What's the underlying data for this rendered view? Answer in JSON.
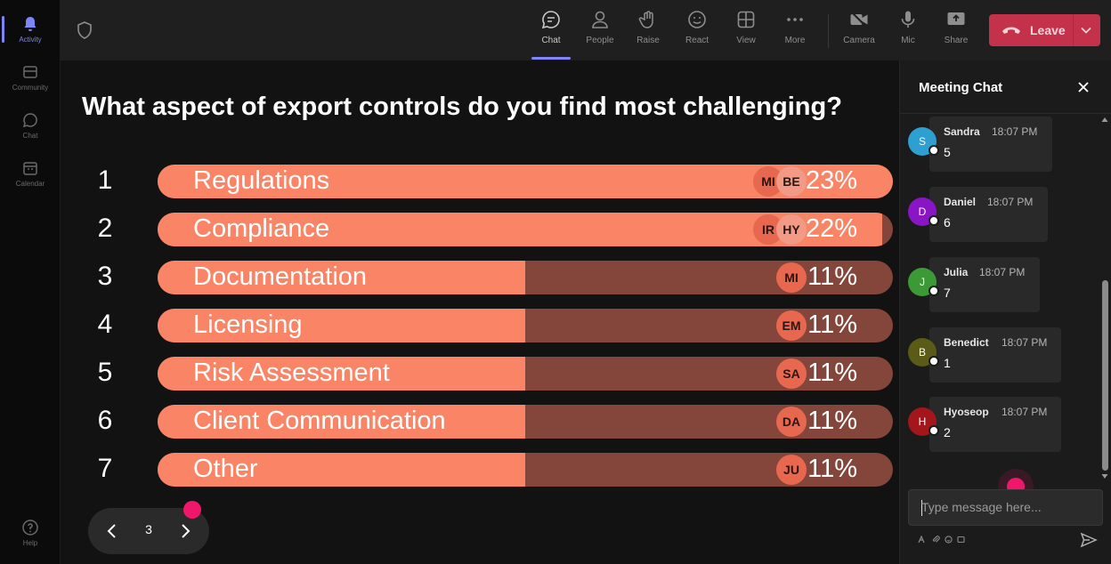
{
  "rail": {
    "items": [
      {
        "label": "Activity",
        "icon": "bell-icon"
      },
      {
        "label": "Community",
        "icon": "community-icon"
      },
      {
        "label": "Chat",
        "icon": "chat-icon"
      },
      {
        "label": "Calendar",
        "icon": "calendar-icon"
      }
    ],
    "help": {
      "label": "Help",
      "icon": "help-icon"
    }
  },
  "toolbar": {
    "chat": "Chat",
    "people": "People",
    "raise": "Raise",
    "react": "React",
    "view": "View",
    "more": "More",
    "camera": "Camera",
    "mic": "Mic",
    "share": "Share",
    "leave": "Leave"
  },
  "poll": {
    "question": "What aspect of export controls do you find most challenging?",
    "options": [
      {
        "num": "1",
        "label": "Regulations",
        "pct": "23%",
        "fraction": 1.0,
        "avatars": [
          "MI",
          "BE"
        ]
      },
      {
        "num": "2",
        "label": "Compliance",
        "pct": "22%",
        "fraction": 0.985,
        "avatars": [
          "IR",
          "HY"
        ]
      },
      {
        "num": "3",
        "label": "Documentation",
        "pct": "11%",
        "fraction": 0.5,
        "avatars": [
          "MI"
        ]
      },
      {
        "num": "4",
        "label": "Licensing",
        "pct": "11%",
        "fraction": 0.5,
        "avatars": [
          "EM"
        ]
      },
      {
        "num": "5",
        "label": "Risk Assessment",
        "pct": "11%",
        "fraction": 0.5,
        "avatars": [
          "SA"
        ]
      },
      {
        "num": "6",
        "label": "Client Communication",
        "pct": "11%",
        "fraction": 0.5,
        "avatars": [
          "DA"
        ]
      },
      {
        "num": "7",
        "label": "Other",
        "pct": "11%",
        "fraction": 0.5,
        "avatars": [
          "JU"
        ]
      }
    ],
    "page": "3"
  },
  "chat": {
    "title": "Meeting Chat",
    "messages": [
      {
        "initial": "S",
        "name": "Sandra",
        "time": "18:07 PM",
        "text": "5",
        "color": "#2e9fd1"
      },
      {
        "initial": "D",
        "name": "Daniel",
        "time": "18:07 PM",
        "text": "6",
        "color": "#8a15c4"
      },
      {
        "initial": "J",
        "name": "Julia",
        "time": "18:07 PM",
        "text": "7",
        "color": "#3b9a35"
      },
      {
        "initial": "B",
        "name": "Benedict",
        "time": "18:07 PM",
        "text": "1",
        "color": "#5b5a16"
      },
      {
        "initial": "H",
        "name": "Hyoseop",
        "time": "18:07 PM",
        "text": "2",
        "color": "#a3161b"
      }
    ],
    "placeholder": "Type message here..."
  },
  "colors": {
    "bar_fill": "#f98466",
    "bar_track": "#84463a",
    "leave": "#c4314b",
    "accent": "#7f85f5",
    "cursor_dot": "#f0166b"
  }
}
